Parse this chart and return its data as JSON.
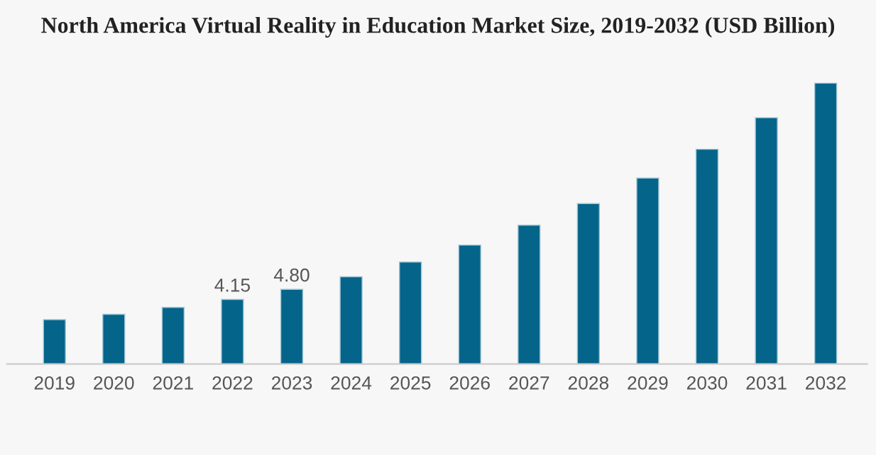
{
  "chart_data": {
    "type": "bar",
    "title": "North America Virtual Reality in Education Market Size, 2019-2032 (USD Billion)",
    "categories": [
      "2019",
      "2020",
      "2021",
      "2022",
      "2023",
      "2024",
      "2025",
      "2026",
      "2027",
      "2028",
      "2029",
      "2030",
      "2031",
      "2032"
    ],
    "values": [
      2.85,
      3.19,
      3.64,
      4.15,
      4.8,
      5.61,
      6.55,
      7.64,
      8.92,
      10.31,
      11.95,
      13.8,
      15.83,
      18.05
    ],
    "value_labels": [
      null,
      null,
      null,
      "4.15",
      "4.80",
      null,
      null,
      null,
      null,
      null,
      null,
      null,
      null,
      null
    ],
    "color": "#05648a",
    "grid": false,
    "legend": false
  }
}
